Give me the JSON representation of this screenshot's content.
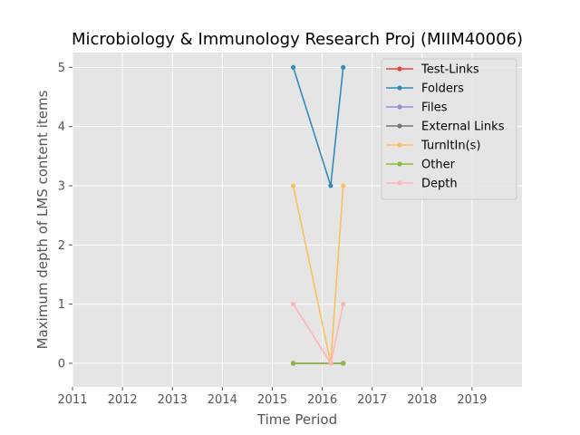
{
  "chart_data": {
    "type": "line",
    "title": "Microbiology & Immunology Research Proj (MIIM40006)",
    "xlabel": "Time Period",
    "ylabel": "Maximum depth of LMS content items",
    "xlim": [
      2011,
      2020
    ],
    "ylim": [
      -0.4,
      5.25
    ],
    "xticks": [
      2011,
      2012,
      2013,
      2014,
      2015,
      2016,
      2017,
      2018,
      2019
    ],
    "yticks": [
      0,
      1,
      2,
      3,
      4,
      5
    ],
    "grid": true,
    "legend_position": "top-right",
    "x": [
      2015.42,
      2016.17,
      2016.42
    ],
    "series": [
      {
        "name": "Test-Links",
        "color": "#E24A33",
        "values": [
          0,
          0,
          0
        ]
      },
      {
        "name": "Folders",
        "color": "#348ABD",
        "values": [
          5,
          3,
          5
        ]
      },
      {
        "name": "Files",
        "color": "#988ED5",
        "values": [
          0,
          0,
          0
        ]
      },
      {
        "name": "External Links",
        "color": "#777777",
        "values": [
          0,
          0,
          0
        ]
      },
      {
        "name": "TurnItIn(s)",
        "color": "#FBC15E",
        "values": [
          3,
          0,
          3
        ]
      },
      {
        "name": "Other",
        "color": "#8EBA42",
        "values": [
          0,
          0,
          0
        ]
      },
      {
        "name": "Depth",
        "color": "#FFB5B8",
        "values": [
          1,
          0,
          1
        ]
      }
    ]
  }
}
